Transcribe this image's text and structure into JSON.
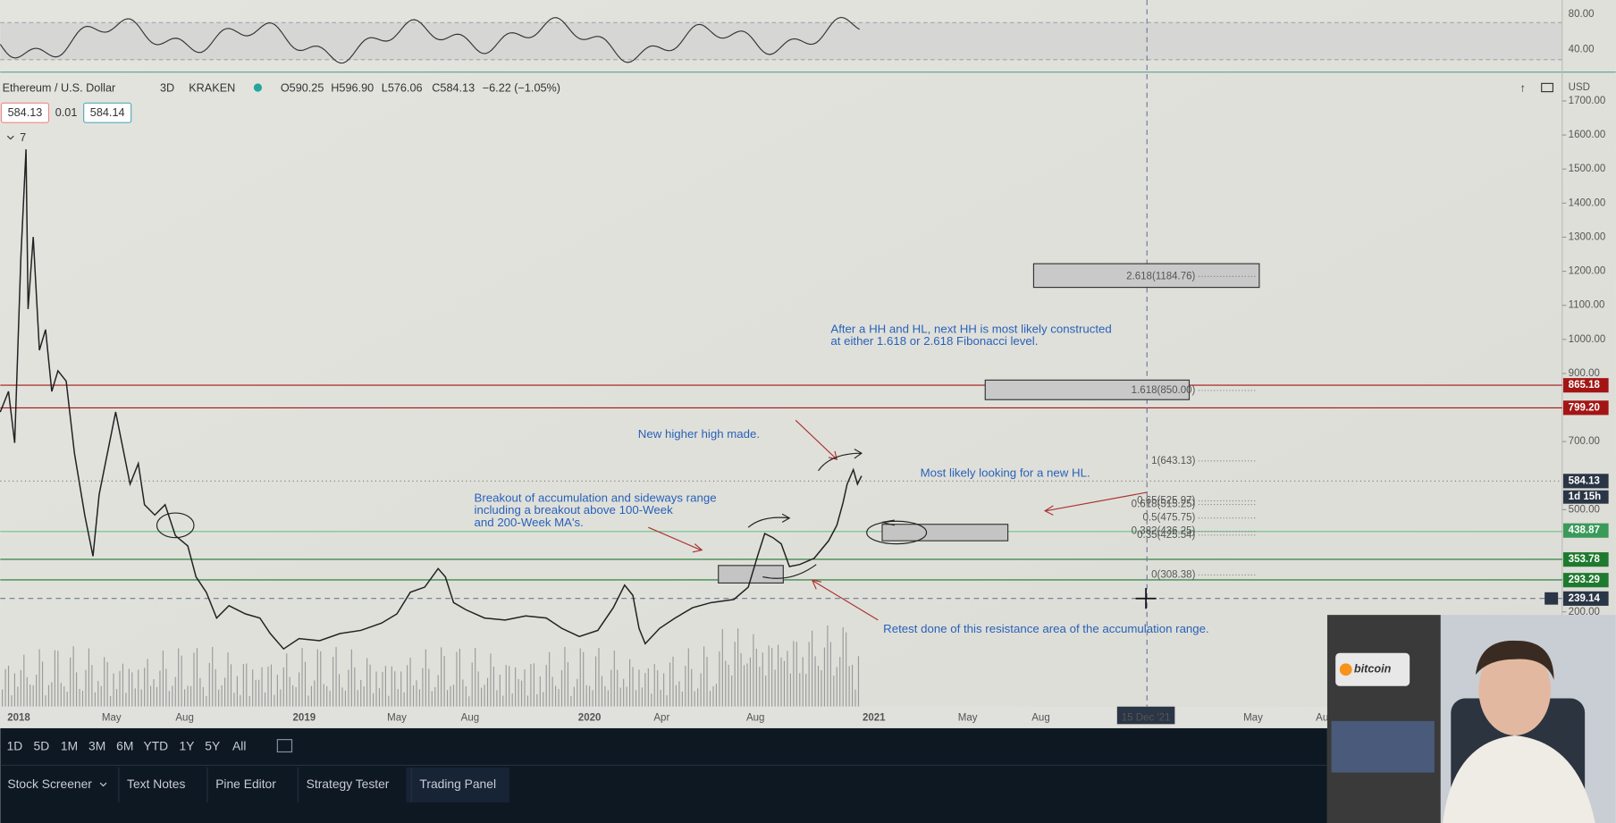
{
  "legend": {
    "symbol": "Ethereum / U.S. Dollar",
    "interval": "3D",
    "exchange": "KRAKEN",
    "open": "O590.25",
    "high": "H596.90",
    "low": "L576.06",
    "close": "C584.13",
    "change": "−6.22 (−1.05%)",
    "bid": "584.13",
    "spread": "0.01",
    "ask": "584.14",
    "study_count": "7"
  },
  "rsi_axis": [
    {
      "value": 80,
      "label": "80.00"
    },
    {
      "value": 40,
      "label": "40.00"
    }
  ],
  "price_axis": {
    "currency": "USD",
    "ticks": [
      {
        "value": 1700,
        "label": "1700.00"
      },
      {
        "value": 1600,
        "label": "1600.00"
      },
      {
        "value": 1500,
        "label": "1500.00"
      },
      {
        "value": 1400,
        "label": "1400.00"
      },
      {
        "value": 1300,
        "label": "1300.00"
      },
      {
        "value": 1200,
        "label": "1200.00"
      },
      {
        "value": 1100,
        "label": "1100.00"
      },
      {
        "value": 1000,
        "label": "1000.00"
      },
      {
        "value": 900,
        "label": "900.00"
      },
      {
        "value": 700,
        "label": "700.00"
      },
      {
        "value": 500,
        "label": "500.00"
      },
      {
        "value": 200,
        "label": "200.00"
      }
    ],
    "tags": [
      {
        "value": 865.18,
        "label": "865.18",
        "color": "#a31515"
      },
      {
        "value": 799.2,
        "label": "799.20",
        "color": "#a31515"
      },
      {
        "value": 584.13,
        "label": "584.13",
        "color": "#2a3545"
      },
      {
        "value": 438.87,
        "label": "438.87",
        "color": "#3a9a5a"
      },
      {
        "value": 353.78,
        "label": "353.78",
        "color": "#1e7a2e"
      },
      {
        "value": 293.29,
        "label": "293.29",
        "color": "#1e7a2e"
      },
      {
        "value": 239.14,
        "label": "239.14",
        "color": "#2a3545"
      }
    ],
    "countdown": "1d 15h"
  },
  "time_axis": [
    "2018",
    "May",
    "Aug",
    "2019",
    "May",
    "Aug",
    "2020",
    "Apr",
    "Aug",
    "2021",
    "May",
    "Aug",
    "15 Dec '21",
    "May",
    "Au"
  ],
  "fibonacci": [
    {
      "value": 1184.76,
      "label": "2.618(1184.76)"
    },
    {
      "value": 850,
      "label": "1.618(850.00)"
    },
    {
      "value": 643.13,
      "label": "1(643.13)"
    },
    {
      "value": 525.97,
      "label": "0.65(525.97)"
    },
    {
      "value": 515.25,
      "label": "0.618(515.25)"
    },
    {
      "value": 475.75,
      "label": "0.5(475.75)"
    },
    {
      "value": 436.25,
      "label": "0.382(436.25)"
    },
    {
      "value": 425.54,
      "label": "0.35(425.54)"
    },
    {
      "value": 308.38,
      "label": "0(308.38)"
    }
  ],
  "annotations": [
    {
      "lines": [
        "After a HH and HL, next HH is most likely constructed",
        "at either 1.618 or 2.618 Fibonacci level."
      ]
    },
    {
      "lines": [
        "New higher high made."
      ]
    },
    {
      "lines": [
        "Most likely looking for a new HL."
      ]
    },
    {
      "lines": [
        "Breakout of accumulation and sideways range",
        "including a breakout above 100-Week",
        "and 200-Week MA's."
      ]
    },
    {
      "lines": [
        "Retest done of this resistance area of the accumulation range."
      ]
    }
  ],
  "range_buttons": [
    "1D",
    "5D",
    "1M",
    "3M",
    "6M",
    "YTD",
    "1Y",
    "5Y",
    "All"
  ],
  "bottom_tabs": [
    "Stock Screener",
    "Text Notes",
    "Pine Editor",
    "Strategy Tester",
    "Trading Panel"
  ],
  "webcam": {
    "sign": "bitcoin"
  }
}
